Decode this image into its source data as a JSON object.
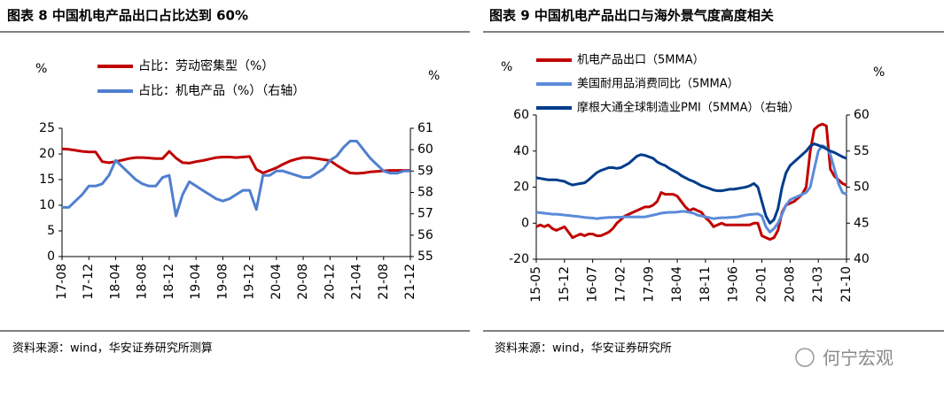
{
  "watermark": "何宁宏观",
  "chart_data": [
    {
      "type": "line",
      "title": "图表 8  中国机电产品出口占比达到 60%",
      "y_label": "%",
      "y2_label": "%",
      "source": "资料来源：wind，华安证券研究所测算",
      "categories": [
        "17-08",
        null,
        null,
        null,
        "17-12",
        null,
        null,
        null,
        "18-04",
        null,
        null,
        null,
        "18-08",
        null,
        null,
        null,
        "18-12",
        null,
        null,
        null,
        "19-04",
        null,
        null,
        null,
        "19-08",
        null,
        null,
        null,
        "19-12",
        null,
        null,
        null,
        "20-04",
        null,
        null,
        null,
        "20-08",
        null,
        null,
        null,
        "20-12",
        null,
        null,
        null,
        "21-04",
        null,
        null,
        null,
        "21-08",
        null,
        null,
        null,
        "21-12"
      ],
      "ylim": [
        0,
        25
      ],
      "yticks": [
        0,
        5,
        10,
        15,
        20,
        25
      ],
      "y2lim": [
        55,
        61
      ],
      "y2ticks": [
        55,
        56,
        57,
        58,
        59,
        60,
        61
      ],
      "grid": false,
      "series": [
        {
          "name": "占比：劳动密集型（%）",
          "color": "#c00000",
          "values": [
            21,
            20.9,
            20.7,
            20.5,
            20.4,
            20.4,
            18.5,
            18.3,
            18.5,
            18.8,
            19.1,
            19.3,
            19.3,
            19.2,
            19.1,
            19.1,
            20.5,
            19.2,
            18.3,
            18.2,
            18.5,
            18.7,
            19.0,
            19.3,
            19.4,
            19.4,
            19.3,
            19.4,
            19.5,
            17.0,
            16.3,
            16.8,
            17.3,
            18.0,
            18.6,
            19.0,
            19.3,
            19.3,
            19.1,
            18.9,
            18.7,
            17.8,
            17.0,
            16.3,
            16.2,
            16.3,
            16.5,
            16.6,
            16.7,
            16.8,
            16.8,
            16.8,
            16.8
          ]
        },
        {
          "name": "占比：机电产品（%）（右轴）",
          "color": "#4f7fcf",
          "axis": "y2",
          "values": [
            57.3,
            57.3,
            57.6,
            57.9,
            58.3,
            58.3,
            58.4,
            58.8,
            59.5,
            59.2,
            58.9,
            58.6,
            58.4,
            58.3,
            58.3,
            58.7,
            58.8,
            56.9,
            57.9,
            58.5,
            58.3,
            58.1,
            57.9,
            57.7,
            57.6,
            57.7,
            57.9,
            58.1,
            58.1,
            57.2,
            58.8,
            58.8,
            59.0,
            59.0,
            58.9,
            58.8,
            58.7,
            58.7,
            58.9,
            59.1,
            59.5,
            59.7,
            60.1,
            60.4,
            60.4,
            60.0,
            59.6,
            59.3,
            59.0,
            58.9,
            58.9,
            59.0,
            59.0
          ]
        }
      ]
    },
    {
      "type": "line",
      "title": "图表 9  中国机电产品出口与海外景气度高度相关",
      "y_label": "%",
      "y2_label": "%",
      "source": "资料来源：wind，华安证券研究所",
      "categories": [
        "15-05",
        null,
        null,
        null,
        null,
        null,
        null,
        "15-12",
        null,
        null,
        null,
        null,
        null,
        null,
        "16-07",
        null,
        null,
        null,
        null,
        null,
        null,
        "17-02",
        null,
        null,
        null,
        null,
        null,
        null,
        "17-09",
        null,
        null,
        null,
        null,
        null,
        null,
        "18-04",
        null,
        null,
        null,
        null,
        null,
        null,
        "18-11",
        null,
        null,
        null,
        null,
        null,
        null,
        "19-06",
        null,
        null,
        null,
        null,
        null,
        null,
        "20-01",
        null,
        null,
        null,
        null,
        null,
        null,
        "20-08",
        null,
        null,
        null,
        null,
        null,
        null,
        "21-03",
        null,
        null,
        null,
        null,
        null,
        null,
        "21-10"
      ],
      "ylim": [
        -20,
        60
      ],
      "yticks": [
        -20,
        0,
        20,
        40,
        60
      ],
      "y2lim": [
        40,
        60
      ],
      "y2ticks": [
        40,
        45,
        50,
        55,
        60
      ],
      "grid": false,
      "series": [
        {
          "name": "机电产品出口（5MMA）",
          "color": "#c00000",
          "values": [
            -2,
            -1,
            -2,
            -1,
            -3,
            -4,
            -3,
            -2,
            -5,
            -8,
            -7,
            -6,
            -7,
            -6,
            -6,
            -7,
            -7,
            -6,
            -5,
            -3,
            0,
            2,
            4,
            5,
            6,
            7,
            8,
            9,
            9,
            10,
            12,
            17,
            16,
            16,
            16,
            15,
            12,
            9,
            7,
            8,
            7,
            6,
            3,
            1,
            -2,
            -1,
            0,
            -1,
            -1,
            -1,
            -1,
            -1,
            -1,
            -1,
            0,
            0,
            -7,
            -8,
            -9,
            -8,
            -4,
            6,
            10,
            11,
            12,
            14,
            16,
            20,
            40,
            52,
            54,
            55,
            54,
            30,
            26,
            24,
            22,
            21
          ]
        },
        {
          "name": "美国耐用品消费同比（5MMA）",
          "color": "#5b8bd9",
          "values": [
            6,
            5.8,
            5.5,
            5.3,
            5,
            5,
            4.8,
            4.5,
            4.3,
            4,
            3.8,
            3.5,
            3.2,
            3,
            2.8,
            2.5,
            2.8,
            3,
            3.2,
            3.2,
            3.3,
            3.3,
            3.5,
            3.5,
            3.4,
            3.5,
            3.4,
            3.5,
            4,
            4.5,
            5,
            5.5,
            5.8,
            6,
            6,
            6.2,
            6.5,
            6.5,
            6,
            5.5,
            4.5,
            4,
            3.5,
            3,
            2.5,
            2.8,
            3,
            3,
            3.2,
            3.3,
            3.5,
            4,
            4.5,
            4.8,
            5,
            5.2,
            4,
            -2,
            -5,
            -3,
            0,
            5,
            10,
            13,
            14,
            15,
            16,
            17,
            20,
            30,
            40,
            43,
            42,
            38,
            30,
            22,
            17,
            16
          ]
        },
        {
          "name": "摩根大通全球制造业PMI（5MMA）（右轴）",
          "color": "#003c8c",
          "axis": "y2",
          "values": [
            51.3,
            51.2,
            51.1,
            51.0,
            51.0,
            51.0,
            50.9,
            50.8,
            50.5,
            50.3,
            50.4,
            50.5,
            50.6,
            51.0,
            51.5,
            52.0,
            52.3,
            52.5,
            52.7,
            52.7,
            52.6,
            52.7,
            53.0,
            53.3,
            53.8,
            54.3,
            54.5,
            54.4,
            54.2,
            54.0,
            53.5,
            53.2,
            53.0,
            52.6,
            52.3,
            52.0,
            51.6,
            51.3,
            51.0,
            50.8,
            50.5,
            50.2,
            50.0,
            49.8,
            49.6,
            49.5,
            49.5,
            49.6,
            49.7,
            49.7,
            49.8,
            49.9,
            50.0,
            50.2,
            50.5,
            50.0,
            48.0,
            46.0,
            45.0,
            45.5,
            47.0,
            50.0,
            52.0,
            53.0,
            53.5,
            54.0,
            54.5,
            55.0,
            55.7,
            56.0,
            55.8,
            55.6,
            55.3,
            55.0,
            54.8,
            54.5,
            54.2,
            54.0
          ]
        }
      ]
    }
  ]
}
